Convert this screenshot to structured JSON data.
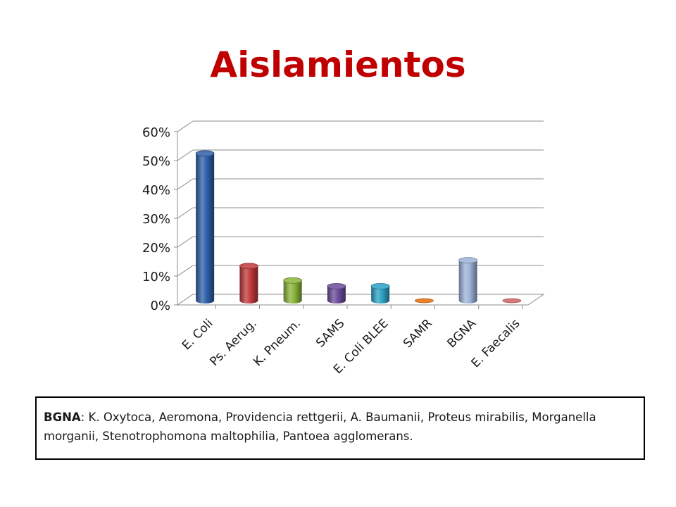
{
  "title": "Aislamientos",
  "colors": {
    "title": "#c00000"
  },
  "chart_data": {
    "type": "bar",
    "categories": [
      "E. Coli",
      "Ps. Aerug.",
      "K. Pneum.",
      "SAMS",
      "E. Coli BLEE",
      "SAMR",
      "BGNA",
      "E. Faecalis"
    ],
    "values": [
      51,
      12,
      7,
      5,
      5,
      0,
      14,
      0
    ],
    "value_unit": "%",
    "ylim": [
      0,
      60
    ],
    "yticks": [
      0,
      10,
      20,
      30,
      40,
      50,
      60
    ],
    "ytick_labels": [
      "0%",
      "10%",
      "20%",
      "30%",
      "40%",
      "50%",
      "60%"
    ],
    "grid": true,
    "legend": "none",
    "style": "3d-cylinder",
    "colors": [
      "#2e5fa8",
      "#c0393b",
      "#8ab43a",
      "#6b4c9a",
      "#2ba2c4",
      "#e8822a",
      "#9db3da",
      "#d87878"
    ]
  },
  "note": {
    "term": "BGNA",
    "text": ": K. Oxytoca, Aeromona, Providencia rettgerii, A. Baumanii, Proteus mirabilis, Morganella morganii, Stenotrophomona maltophilia, Pantoea agglomerans."
  }
}
